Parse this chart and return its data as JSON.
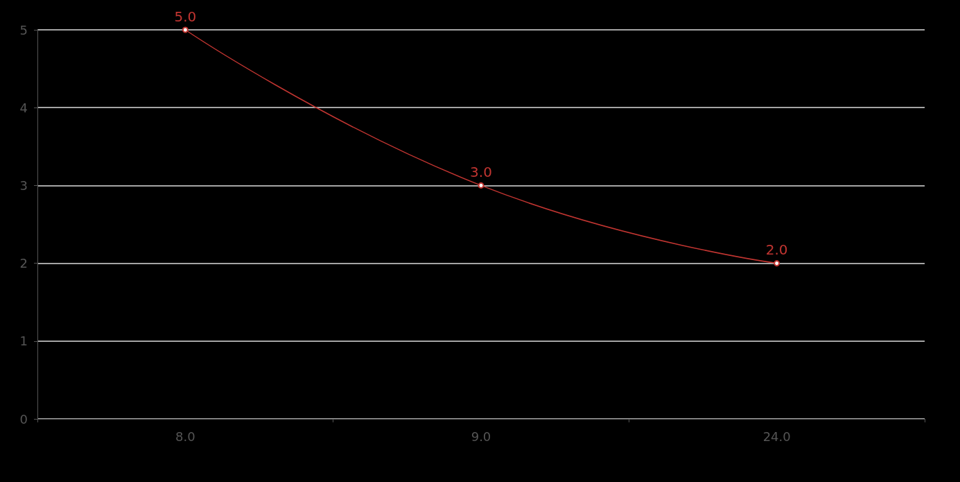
{
  "chart_data": {
    "type": "line",
    "categories": [
      "8.0",
      "9.0",
      "24.0"
    ],
    "series": [
      {
        "color": "#c23531",
        "values": [
          5,
          3,
          2
        ],
        "value_labels": [
          "5.0",
          "3.0",
          "2.0"
        ]
      }
    ],
    "ylim": [
      0,
      5
    ],
    "yticks": [
      0,
      1,
      2,
      3,
      4,
      5
    ],
    "grid": "y",
    "marker": "circle",
    "line_style": "solid"
  }
}
